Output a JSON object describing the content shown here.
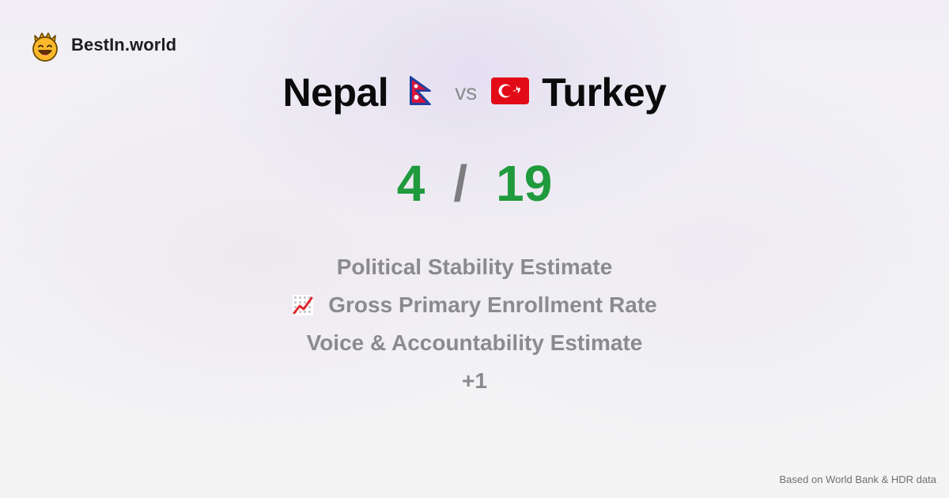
{
  "brand": {
    "name": "BestIn.world",
    "logo_icon": "crowned-smiley-icon"
  },
  "comparison": {
    "left_country": "Nepal",
    "left_flag_icon": "nepal-flag-icon",
    "vs_label": "vs",
    "right_country": "Turkey",
    "right_flag_icon": "turkey-flag-icon"
  },
  "score": {
    "left": "4",
    "separator": "/",
    "right": "19",
    "color": "#1f9a3d"
  },
  "metrics": [
    {
      "label": "Political Stability Estimate",
      "icon": ""
    },
    {
      "label": "Gross Primary Enrollment Rate",
      "icon": "chart-increasing-icon"
    },
    {
      "label": "Voice & Accountability Estimate",
      "icon": ""
    }
  ],
  "more_label": "+1",
  "footer": {
    "source": "Based on World Bank & HDR data"
  }
}
